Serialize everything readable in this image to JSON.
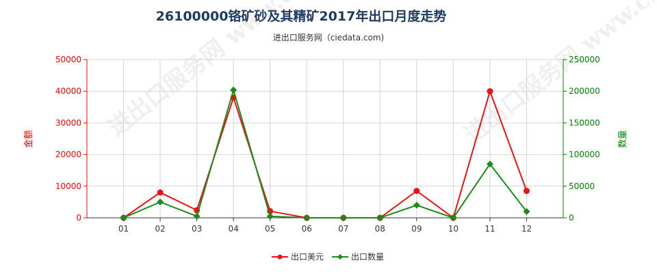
{
  "chart_data": {
    "type": "line",
    "title": "26100000铬矿砂及其精矿2017年出口月度走势",
    "subtitle": "进出口服务网（ciedata.com)",
    "watermark": "进出口服务网 www.ciedata.com",
    "categories": [
      "01",
      "02",
      "03",
      "04",
      "05",
      "06",
      "07",
      "08",
      "09",
      "10",
      "11",
      "12"
    ],
    "y_left": {
      "label": "金额",
      "ticks": [
        "0",
        "10000",
        "20000",
        "30000",
        "40000",
        "50000"
      ],
      "range": [
        0,
        50000
      ],
      "color": "#ff0000"
    },
    "y_right": {
      "label": "数量",
      "ticks": [
        "0",
        "50000",
        "100000",
        "150000",
        "200000",
        "250000"
      ],
      "range": [
        0,
        250000
      ],
      "color": "#008000"
    },
    "series": [
      {
        "name": "出口美元",
        "axis": "left",
        "color": "#ee1111",
        "marker": "circle",
        "values": [
          0,
          8000,
          2400,
          38000,
          2100,
          0,
          0,
          0,
          8500,
          0,
          40000,
          8500
        ]
      },
      {
        "name": "出口数量",
        "axis": "right",
        "color": "#1a8a1a",
        "marker": "diamond",
        "values": [
          0,
          25000,
          2500,
          202000,
          2500,
          0,
          0,
          0,
          20000,
          0,
          85000,
          10000
        ]
      }
    ],
    "grid": true,
    "legend": "bottom-center"
  }
}
